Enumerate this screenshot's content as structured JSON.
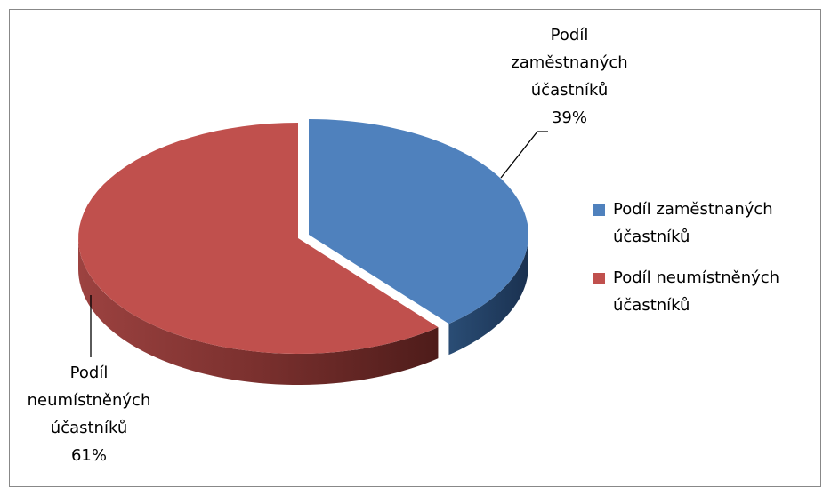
{
  "chart_data": {
    "type": "pie",
    "categories": [
      "Podíl zaměstnaných účastníků",
      "Podíl neumístněných účastníků"
    ],
    "values": [
      39,
      61
    ],
    "value_labels": [
      "39%",
      "61%"
    ],
    "colors": [
      "#4f81bd",
      "#c0504d"
    ],
    "legend": "right"
  }
}
